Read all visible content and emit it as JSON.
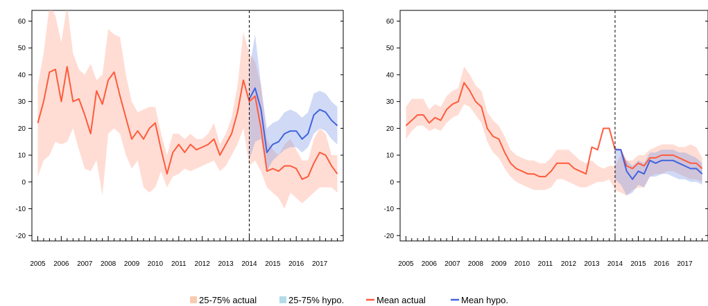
{
  "figure": {
    "legend": [
      {
        "label": "25-75% actual",
        "kind": "swatch",
        "color": "#f8cbb0"
      },
      {
        "label": "25-75% hypo.",
        "kind": "swatch",
        "color": "#b4dbe8"
      },
      {
        "label": "Mean actual",
        "kind": "line",
        "color": "#ff5a3c"
      },
      {
        "label": "Mean hypo.",
        "kind": "line",
        "color": "#3f63e0"
      }
    ]
  },
  "chart_data": [
    {
      "type": "line",
      "panel": "left",
      "ylim": [
        -22,
        64
      ],
      "yticks": [
        60,
        50,
        40,
        30,
        20,
        10,
        0,
        -10,
        -20
      ],
      "xlim": [
        2004.75,
        2018.0
      ],
      "xtick_labels": [
        "2005",
        "2006",
        "2007",
        "2008",
        "2009",
        "2010",
        "2011",
        "2012",
        "2013",
        "2014",
        "2015",
        "2016",
        "2017"
      ],
      "vline": 2014.0,
      "colors": {
        "actual_line": "#ff5a3c",
        "actual_band": "#ffb4a0",
        "hypo_line": "#3f63e0",
        "hypo_band": "#7896e6"
      },
      "series": [
        {
          "name": "Mean actual",
          "x": [
            2005.0,
            2005.25,
            2005.5,
            2005.75,
            2006.0,
            2006.25,
            2006.5,
            2006.75,
            2007.0,
            2007.25,
            2007.5,
            2007.75,
            2008.0,
            2008.25,
            2008.5,
            2008.75,
            2009.0,
            2009.25,
            2009.5,
            2009.75,
            2010.0,
            2010.25,
            2010.5,
            2010.75,
            2011.0,
            2011.25,
            2011.5,
            2011.75,
            2012.0,
            2012.25,
            2012.5,
            2012.75,
            2013.0,
            2013.25,
            2013.5,
            2013.75,
            2014.0,
            2014.25,
            2014.5,
            2014.75,
            2015.0,
            2015.25,
            2015.5,
            2015.75,
            2016.0,
            2016.25,
            2016.5,
            2016.75,
            2017.0,
            2017.25,
            2017.5,
            2017.75
          ],
          "y": [
            22,
            30,
            41,
            42,
            30,
            43,
            30,
            31,
            25,
            18,
            34,
            29,
            38,
            41,
            32,
            24,
            16,
            19,
            16,
            20,
            22,
            12,
            3,
            11,
            14,
            11,
            14,
            12,
            13,
            14,
            16,
            10,
            14,
            18,
            26,
            38,
            30,
            32,
            20,
            4,
            5,
            4,
            6,
            6,
            5,
            1,
            2,
            7,
            11,
            10,
            6,
            3
          ],
          "band_low": [
            2,
            8,
            10,
            15,
            14,
            15,
            20,
            12,
            5,
            4,
            8,
            -5,
            18,
            20,
            18,
            10,
            5,
            8,
            -2,
            -4,
            -2,
            4,
            -2,
            2,
            3,
            5,
            4,
            5,
            6,
            7,
            8,
            4,
            6,
            10,
            14,
            20,
            6,
            8,
            4,
            -2,
            -4,
            -6,
            -10,
            -4,
            -6,
            -8,
            -6,
            -4,
            -2,
            -2,
            -2,
            -4
          ],
          "band_high": [
            36,
            48,
            66,
            62,
            52,
            66,
            48,
            42,
            40,
            44,
            38,
            40,
            57,
            55,
            54,
            40,
            30,
            26,
            27,
            28,
            28,
            18,
            10,
            18,
            18,
            16,
            18,
            16,
            16,
            18,
            22,
            14,
            18,
            24,
            36,
            56,
            48,
            45,
            36,
            16,
            12,
            10,
            14,
            16,
            12,
            8,
            8,
            16,
            20,
            18,
            10,
            10
          ]
        },
        {
          "name": "Mean hypo.",
          "x": [
            2014.0,
            2014.25,
            2014.5,
            2014.75,
            2015.0,
            2015.25,
            2015.5,
            2015.75,
            2016.0,
            2016.25,
            2016.5,
            2016.75,
            2017.0,
            2017.25,
            2017.5,
            2017.75
          ],
          "y": [
            31,
            35,
            27,
            11,
            14,
            15,
            18,
            19,
            19,
            16,
            18,
            25,
            27,
            26,
            23,
            21
          ],
          "band_low": [
            8,
            15,
            16,
            4,
            8,
            10,
            12,
            13,
            13,
            11,
            13,
            18,
            20,
            19,
            16,
            14
          ],
          "band_high": [
            42,
            55,
            36,
            20,
            22,
            23,
            26,
            27,
            26,
            24,
            26,
            33,
            34,
            33,
            30,
            28
          ]
        }
      ]
    },
    {
      "type": "line",
      "panel": "right",
      "ylim": [
        -22,
        64
      ],
      "yticks": [
        60,
        50,
        40,
        30,
        20,
        10,
        0,
        -10,
        -20
      ],
      "xlim": [
        2004.75,
        2018.0
      ],
      "xtick_labels": [
        "2005",
        "2006",
        "2007",
        "2008",
        "2009",
        "2010",
        "2011",
        "2012",
        "2013",
        "2014",
        "2015",
        "2016",
        "2017"
      ],
      "vline": 2014.0,
      "colors": {
        "actual_line": "#ff5a3c",
        "actual_band": "#ffb4a0",
        "hypo_line": "#3f63e0",
        "hypo_band": "#7896e6"
      },
      "series": [
        {
          "name": "Mean actual",
          "x": [
            2005.0,
            2005.25,
            2005.5,
            2005.75,
            2006.0,
            2006.25,
            2006.5,
            2006.75,
            2007.0,
            2007.25,
            2007.5,
            2007.75,
            2008.0,
            2008.25,
            2008.5,
            2008.75,
            2009.0,
            2009.25,
            2009.5,
            2009.75,
            2010.0,
            2010.25,
            2010.5,
            2010.75,
            2011.0,
            2011.25,
            2011.5,
            2011.75,
            2012.0,
            2012.25,
            2012.5,
            2012.75,
            2013.0,
            2013.25,
            2013.5,
            2013.75,
            2014.0,
            2014.25,
            2014.5,
            2014.75,
            2015.0,
            2015.25,
            2015.5,
            2015.75,
            2016.0,
            2016.25,
            2016.5,
            2016.75,
            2017.0,
            2017.25,
            2017.5,
            2017.75
          ],
          "y": [
            21,
            23,
            25,
            25,
            22,
            24,
            23,
            27,
            29,
            30,
            37,
            34,
            30,
            28,
            20,
            17,
            16,
            11,
            7,
            5,
            4,
            3,
            3,
            2,
            2,
            4,
            7,
            7,
            7,
            5,
            4,
            3,
            13,
            12,
            20,
            20,
            12,
            12,
            6,
            5,
            7,
            6,
            9,
            9,
            10,
            10,
            10,
            9,
            8,
            7,
            7,
            5
          ],
          "band_low": [
            16,
            19,
            21,
            21,
            19,
            20,
            19,
            22,
            24,
            25,
            29,
            28,
            25,
            22,
            15,
            11,
            9,
            5,
            2,
            0,
            -1,
            -2,
            -3,
            -3,
            -3,
            -2,
            1,
            1,
            0,
            -1,
            -2,
            -2,
            -1,
            0,
            0,
            1,
            -3,
            -4,
            -5,
            -3,
            -2,
            -2,
            2,
            3,
            3,
            4,
            4,
            3,
            2,
            1,
            1,
            0
          ],
          "band_high": [
            28,
            31,
            31,
            31,
            27,
            29,
            28,
            32,
            34,
            35,
            43,
            40,
            36,
            34,
            26,
            23,
            21,
            17,
            12,
            10,
            9,
            8,
            8,
            7,
            7,
            9,
            12,
            12,
            12,
            10,
            8,
            7,
            8,
            6,
            5,
            6,
            6,
            10,
            8,
            8,
            10,
            10,
            12,
            13,
            14,
            14,
            14,
            13,
            13,
            14,
            13,
            9
          ]
        },
        {
          "name": "Mean hypo.",
          "x": [
            2014.0,
            2014.25,
            2014.5,
            2014.75,
            2015.0,
            2015.25,
            2015.5,
            2015.75,
            2016.0,
            2016.25,
            2016.5,
            2016.75,
            2017.0,
            2017.25,
            2017.5,
            2017.75
          ],
          "y": [
            12,
            12,
            4,
            1,
            4,
            3,
            8,
            7,
            8,
            8,
            8,
            7,
            6,
            5,
            5,
            3
          ],
          "band_low": [
            1,
            -1,
            -5,
            -4,
            -1,
            -2,
            2,
            2,
            3,
            3,
            2,
            1,
            1,
            0,
            0,
            -1
          ],
          "band_high": [
            13,
            12,
            8,
            6,
            8,
            7,
            11,
            11,
            12,
            12,
            12,
            11,
            11,
            10,
            9,
            7
          ]
        }
      ]
    }
  ]
}
